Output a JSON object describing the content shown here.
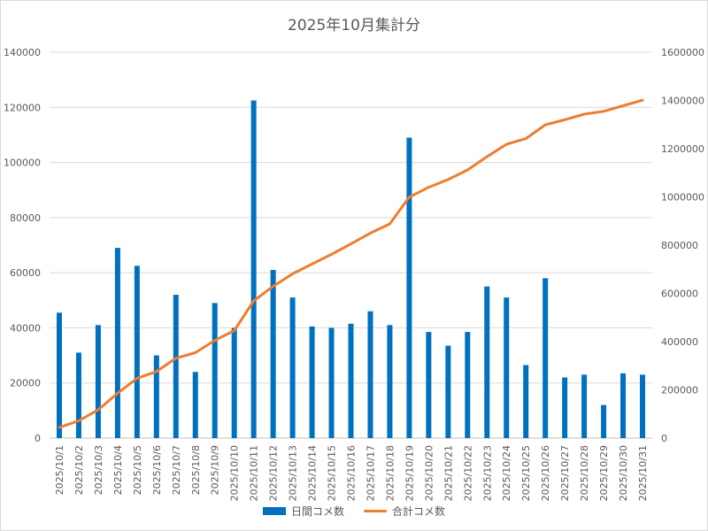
{
  "chart_data": {
    "type": "bar",
    "title": "2025年10月集計分",
    "categories": [
      "2025/10/1",
      "2025/10/2",
      "2025/10/3",
      "2025/10/4",
      "2025/10/5",
      "2025/10/6",
      "2025/10/7",
      "2025/10/8",
      "2025/10/9",
      "2025/10/10",
      "2025/10/11",
      "2025/10/12",
      "2025/10/13",
      "2025/10/14",
      "2025/10/15",
      "2025/10/16",
      "2025/10/17",
      "2025/10/18",
      "2025/10/19",
      "2025/10/20",
      "2025/10/21",
      "2025/10/22",
      "2025/10/23",
      "2025/10/24",
      "2025/10/25",
      "2025/10/26",
      "2025/10/27",
      "2025/10/28",
      "2025/10/29",
      "2025/10/30",
      "2025/10/31"
    ],
    "y_left": {
      "ylim": [
        0,
        140000
      ],
      "ticks": [
        "0",
        "20000",
        "40000",
        "60000",
        "80000",
        "100000",
        "120000",
        "140000"
      ]
    },
    "y_right": {
      "ylim": [
        0,
        1600000
      ],
      "ticks": [
        "0",
        "200000",
        "400000",
        "600000",
        "800000",
        "1000000",
        "1200000",
        "1400000",
        "1600000"
      ]
    },
    "grid": true,
    "legend_position": "bottom",
    "series": [
      {
        "name": "日間コメ数",
        "kind": "bar",
        "axis": "left",
        "color": "#0070C0",
        "values": [
          45500,
          31000,
          41000,
          69000,
          62500,
          30000,
          52000,
          24000,
          49000,
          40000,
          122500,
          61000,
          51000,
          40500,
          40000,
          41500,
          46000,
          41000,
          109000,
          38500,
          33500,
          38500,
          55000,
          51000,
          26500,
          58000,
          22000,
          23000,
          12000,
          23500,
          23000
        ]
      },
      {
        "name": "合計コメ数",
        "kind": "line",
        "axis": "right",
        "color": "#ED7D31",
        "values": [
          44000,
          72000,
          117000,
          186000,
          248000,
          276000,
          331000,
          354000,
          405000,
          446000,
          569000,
          629000,
          681000,
          722000,
          762000,
          805000,
          850000,
          888000,
          999000,
          1040000,
          1072000,
          1112000,
          1167000,
          1218000,
          1242000,
          1299000,
          1320000,
          1343000,
          1355000,
          1378000,
          1401000
        ]
      }
    ]
  }
}
